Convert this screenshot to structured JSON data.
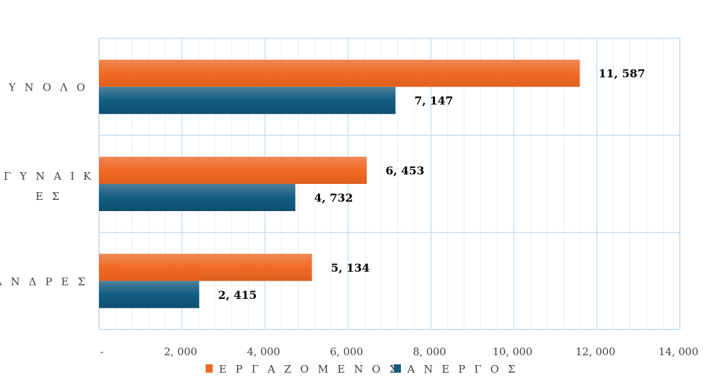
{
  "chart_data": {
    "type": "bar",
    "orientation": "horizontal",
    "title": "",
    "categories": [
      "ΣΥΝΟΛΟ",
      "ΓΥΝΑΙΚΕΣ",
      "ΑΝΔΡΕΣ"
    ],
    "category_display": [
      "Σ Υ Ν Ο Λ Ο",
      [
        "Γ Υ Ν Α Ι Κ",
        "Ε Σ"
      ],
      "Α Ν Δ Ρ Ε Σ"
    ],
    "series": [
      {
        "name": "ΕΡΓΑΖΟΜΕΝΟΣ",
        "display": "Ε Ρ Γ Α Ζ Ο Μ Ε Ν Ο Σ",
        "color": "#ED6A25",
        "values": [
          11587,
          6453,
          5134
        ],
        "labels": [
          "11, 587",
          "6, 453",
          "5, 134"
        ]
      },
      {
        "name": "ΑΝΕΡΓΟΣ",
        "display": "Α Ν Ε Ρ Γ Ο Σ",
        "color": "#145A7E",
        "values": [
          7147,
          4732,
          2415
        ],
        "labels": [
          "7, 147",
          "4, 732",
          "2, 415"
        ]
      }
    ],
    "xlim": [
      0,
      14000
    ],
    "xticks": [
      0,
      2000,
      4000,
      6000,
      8000,
      10000,
      12000,
      14000
    ],
    "xtick_labels": [
      "-",
      "2, 000",
      "4, 000",
      "6, 000",
      "8, 000",
      "10, 000",
      "12, 000",
      "14, 000"
    ],
    "grid": true,
    "legend": "bottom"
  }
}
